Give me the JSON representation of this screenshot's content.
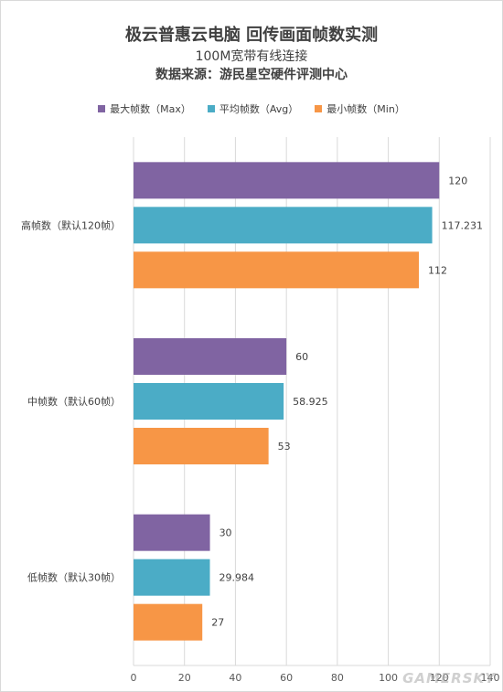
{
  "chart_data": {
    "type": "bar",
    "orientation": "horizontal",
    "title": "极云普惠云电脑 回传画面帧数实测",
    "subtitle": "100M宽带有线连接",
    "source": "数据来源：游民星空硬件评测中心",
    "categories": [
      "高帧数（默认120帧）",
      "中帧数（默认60帧）",
      "低帧数（默认30帧）"
    ],
    "series": [
      {
        "name": "最大帧数（Max）",
        "color": "#8064a2",
        "values": [
          120,
          60,
          30
        ],
        "labels": [
          "120",
          "60",
          "30"
        ]
      },
      {
        "name": "平均帧数（Avg）",
        "color": "#4bacc6",
        "values": [
          117.231,
          58.925,
          29.984
        ],
        "labels": [
          "117.231",
          "58.925",
          "29.984"
        ]
      },
      {
        "name": "最小帧数（Min）",
        "color": "#f79646",
        "values": [
          112,
          53,
          27
        ],
        "labels": [
          "112",
          "53",
          "27"
        ]
      }
    ],
    "xlim": [
      0,
      140
    ],
    "xticks": [
      "0",
      "20",
      "40",
      "60",
      "80",
      "100",
      "120",
      "140"
    ],
    "grid": true,
    "legend_position": "top"
  },
  "watermark": "GAMERSKY"
}
